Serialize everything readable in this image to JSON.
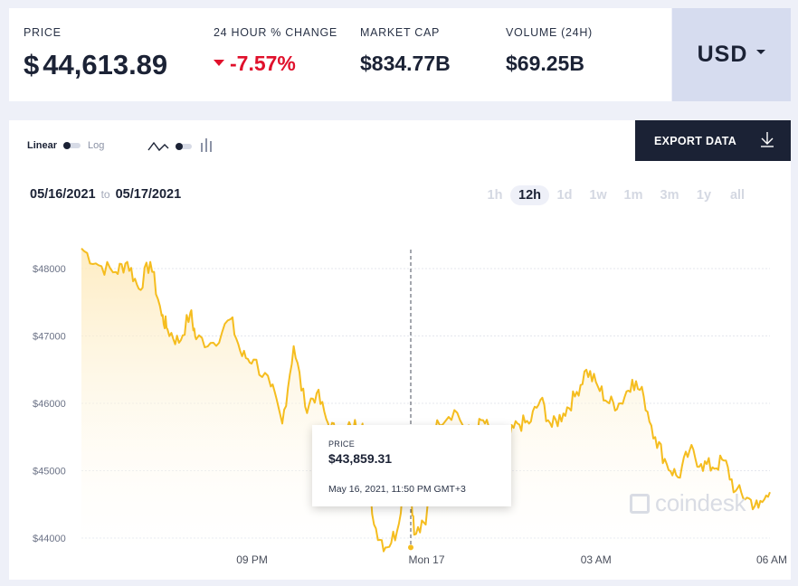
{
  "stats": {
    "price": {
      "label": "PRICE",
      "currency_symbol": "$",
      "value": "44,613.89"
    },
    "change": {
      "label": "24 HOUR % CHANGE",
      "value": "-7.57%"
    },
    "market_cap": {
      "label": "MARKET CAP",
      "value": "$834.77B"
    },
    "volume": {
      "label": "VOLUME (24H)",
      "value": "$69.25B"
    }
  },
  "currency": {
    "code": "USD"
  },
  "controls": {
    "scale_linear": "Linear",
    "scale_log": "Log",
    "export_label": "EXPORT DATA",
    "date_from": "05/16/2021",
    "date_to_word": "to",
    "date_to": "05/17/2021",
    "ranges": [
      "1h",
      "12h",
      "1d",
      "1w",
      "1m",
      "3m",
      "1y",
      "all"
    ],
    "active_range": "12h"
  },
  "tooltip": {
    "label": "PRICE",
    "value": "$43,859.31",
    "datetime": "May 16, 2021, 11:50 PM GMT+3"
  },
  "watermark": "coindesk",
  "colors": {
    "line": "#f5bd1f",
    "negative": "#e0102b",
    "navy": "#1b2235",
    "currency_bg": "#d6dcef"
  },
  "chart_data": {
    "type": "area",
    "y_ticks": [
      "$48000",
      "$47000",
      "$46000",
      "$45000",
      "$44000"
    ],
    "x_ticks": [
      "09 PM",
      "Mon 17",
      "03 AM",
      "06 AM"
    ],
    "ylim": [
      43900,
      48400
    ],
    "x_hours_from_start": [
      0,
      0.3,
      0.6,
      0.8,
      1.0,
      1.2,
      1.4,
      1.5,
      1.7,
      1.9,
      2.0,
      2.3,
      2.6,
      2.8,
      3.0,
      3.3,
      3.5,
      3.7,
      3.9,
      4.1,
      4.3,
      4.5,
      4.7,
      4.9,
      5.1,
      5.3,
      5.5,
      5.7,
      5.8,
      6.0,
      6.2,
      6.5,
      6.8,
      7.0,
      7.2,
      7.4,
      7.6,
      7.8,
      8.0,
      8.2,
      8.4,
      8.6,
      8.8,
      9.0,
      9.2,
      9.4,
      9.6,
      9.8,
      10.0,
      10.2,
      10.4,
      10.6,
      10.8,
      11.0,
      11.2,
      11.4,
      11.6,
      11.8,
      12.0
    ],
    "prices": [
      48300,
      48050,
      47950,
      48100,
      47700,
      48100,
      47300,
      47100,
      46900,
      47350,
      46950,
      46900,
      47250,
      46700,
      46650,
      46250,
      45700,
      46850,
      45950,
      46150,
      45700,
      45500,
      45650,
      45700,
      44200,
      43860,
      44100,
      45300,
      44050,
      44200,
      45750,
      45900,
      45500,
      45750,
      45450,
      45400,
      45700,
      45700,
      46050,
      45650,
      45850,
      46100,
      46500,
      46250,
      46000,
      46000,
      46350,
      46100,
      45500,
      45100,
      44900,
      45300,
      45100,
      45050,
      45150,
      44700,
      44600,
      44450,
      44680
    ]
  }
}
